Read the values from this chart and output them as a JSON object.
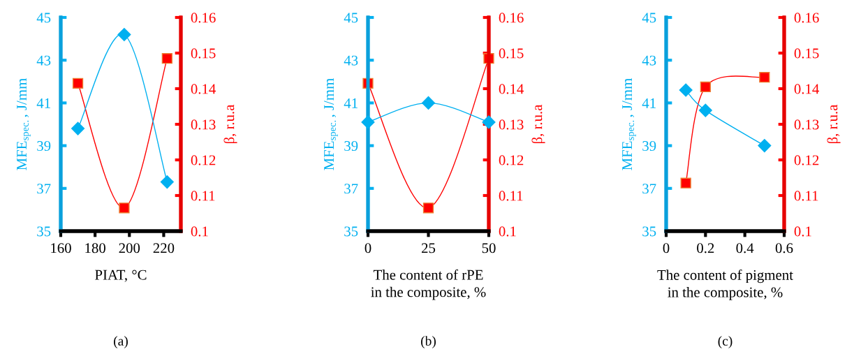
{
  "chart_data": [
    {
      "type": "line",
      "x": [
        170,
        197,
        222
      ],
      "xlabel": "PIAT, °C",
      "ylabel": "MFE$_{spec.}$, J/mm",
      "y2label": "β, r.u.a",
      "xlim": [
        160,
        230
      ],
      "xticks": [
        160,
        180,
        200,
        220
      ],
      "ylim": [
        35,
        45
      ],
      "yticks": [
        35,
        37,
        39,
        41,
        43,
        45
      ],
      "y2lim": [
        0.1,
        0.16
      ],
      "y2ticks": [
        0.1,
        0.11,
        0.12,
        0.13,
        0.14,
        0.15,
        0.16
      ],
      "annotations": [
        "(a)"
      ],
      "series": [
        {
          "color": "#00b0f0",
          "marker": "diamond",
          "values": [
            39.8,
            44.2,
            37.3
          ]
        },
        {
          "color": "#ff0000",
          "marker": "square",
          "axis": "y2",
          "values": [
            0.1415,
            0.1065,
            0.1485
          ]
        }
      ]
    },
    {
      "type": "line",
      "x": [
        0,
        25,
        50
      ],
      "xlabel": "The content of rPE\nin the composite, %",
      "ylabel": "MFE$_{spec.}$, J/mm",
      "y2label": "β, r.u.a",
      "xlim": [
        0,
        50
      ],
      "xticks": [
        0,
        25,
        50
      ],
      "ylim": [
        35,
        45
      ],
      "yticks": [
        35,
        37,
        39,
        41,
        43,
        45
      ],
      "y2lim": [
        0.1,
        0.16
      ],
      "y2ticks": [
        0.1,
        0.11,
        0.12,
        0.13,
        0.14,
        0.15,
        0.16
      ],
      "annotations": [
        "(b)"
      ],
      "series": [
        {
          "color": "#00b0f0",
          "marker": "diamond",
          "values": [
            40.1,
            41.0,
            40.1
          ]
        },
        {
          "color": "#ff0000",
          "marker": "square",
          "axis": "y2",
          "values": [
            0.1415,
            0.1065,
            0.1485
          ]
        }
      ]
    },
    {
      "type": "line",
      "x": [
        0.1,
        0.2,
        0.5
      ],
      "xlabel": "The content of pigment\nin the composite, %",
      "ylabel": "MFE$_{spec.}$, J/mm",
      "y2label": "β, r.u.a",
      "xlim": [
        0,
        0.6
      ],
      "xticks": [
        0,
        0.2,
        0.4,
        0.6
      ],
      "ylim": [
        35,
        45
      ],
      "yticks": [
        35,
        37,
        39,
        41,
        43,
        45
      ],
      "y2lim": [
        0.1,
        0.16
      ],
      "y2ticks": [
        0.1,
        0.11,
        0.12,
        0.13,
        0.14,
        0.15,
        0.16
      ],
      "annotations": [
        "(c)"
      ],
      "series": [
        {
          "color": "#00b0f0",
          "marker": "diamond",
          "values": [
            41.6,
            40.65,
            39.0
          ]
        },
        {
          "color": "#ff0000",
          "marker": "square",
          "axis": "y2",
          "values": [
            0.1135,
            0.1405,
            0.1432
          ]
        }
      ]
    }
  ]
}
